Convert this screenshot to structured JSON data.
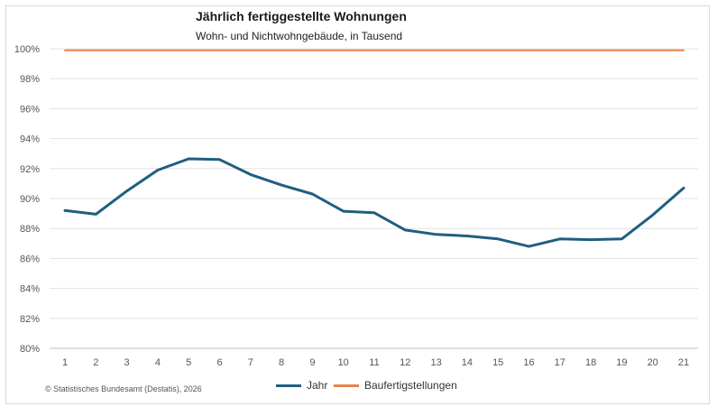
{
  "chart_data": {
    "type": "line",
    "title": "Jährlich fertiggestellte Wohnungen",
    "subtitle": "Wohn- und Nichtwohngebäude, in Tausend",
    "x": [
      "1",
      "2",
      "3",
      "4",
      "5",
      "6",
      "7",
      "8",
      "9",
      "10",
      "11",
      "12",
      "13",
      "14",
      "15",
      "16",
      "17",
      "18",
      "19",
      "20",
      "21"
    ],
    "y_ticks": [
      "80%",
      "82%",
      "84%",
      "86%",
      "88%",
      "90%",
      "92%",
      "94%",
      "96%",
      "98%",
      "100%"
    ],
    "ylim": [
      80,
      100
    ],
    "grid": true,
    "legend_position": "bottom",
    "series": [
      {
        "name": "Jahr",
        "color": "#1f5f7f",
        "values": [
          89.2,
          88.95,
          90.5,
          91.9,
          92.65,
          92.6,
          91.6,
          90.9,
          90.3,
          89.15,
          89.05,
          87.9,
          87.6,
          87.5,
          87.3,
          86.8,
          87.3,
          87.25,
          87.3,
          88.9,
          90.7
        ]
      },
      {
        "name": "Baufertigstellungen",
        "color": "#e8834e",
        "values": [
          99.9,
          99.9,
          99.9,
          99.9,
          99.9,
          99.9,
          99.9,
          99.9,
          99.9,
          99.9,
          99.9,
          99.9,
          99.9,
          99.9,
          99.9,
          99.9,
          99.9,
          99.9,
          99.9,
          99.9,
          99.9
        ]
      }
    ]
  },
  "footer": {
    "source": "© Statistisches Bundesamt (Destatis), 2026"
  }
}
